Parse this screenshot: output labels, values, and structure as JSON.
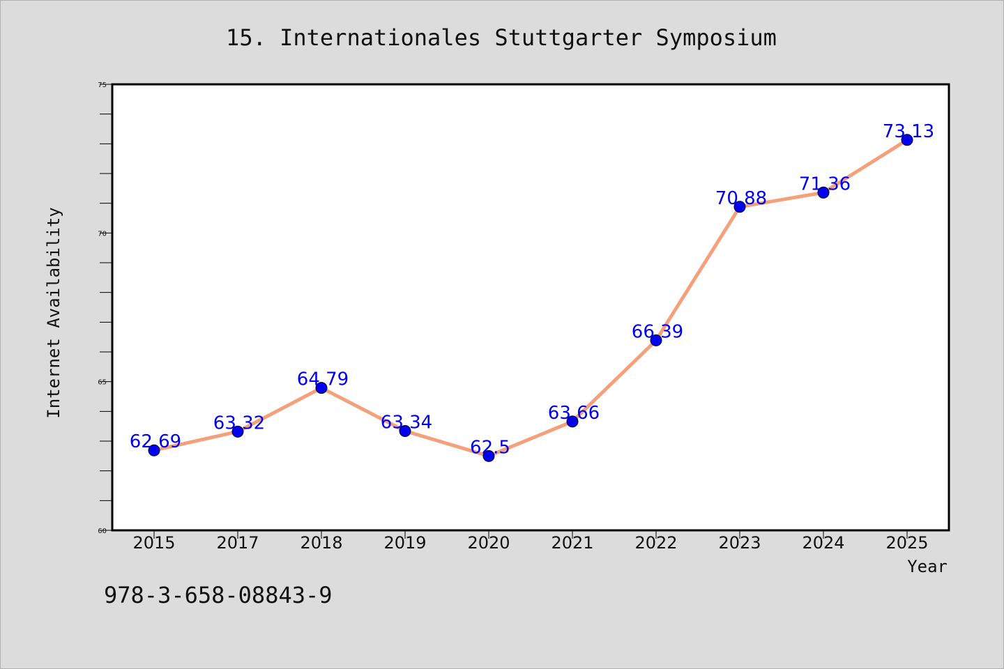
{
  "chart_data": {
    "type": "line",
    "title": "15. Internationales Stuttgarter Symposium",
    "xlabel": "Year",
    "ylabel": "Internet Availability",
    "categories": [
      "2015",
      "2017",
      "2018",
      "2019",
      "2020",
      "2021",
      "2022",
      "2023",
      "2024",
      "2025"
    ],
    "series": [
      {
        "values": [
          62.69,
          63.32,
          64.79,
          63.34,
          62.5,
          63.66,
          66.39,
          70.88,
          71.36,
          73.13
        ],
        "labels": [
          "62.69",
          "63.32",
          "64.79",
          "63.34",
          "62.5",
          "63.66",
          "66.39",
          "70.88",
          "71.36",
          "73.13"
        ],
        "line_color": "#f4a07a",
        "marker_color": "#0000ee",
        "label_color": "#0000ee"
      }
    ],
    "ylim": [
      60,
      75
    ],
    "yticks_major": [
      60,
      65,
      70,
      75
    ],
    "ytick_minor_step": 1,
    "grid": false,
    "legend": "none"
  },
  "footer": {
    "isbn": "978-3-658-08843-9"
  },
  "colors": {
    "background": "#dcdcdc",
    "plot_background": "#ffffff",
    "line": "#f4a07a",
    "marker": "#0000ee",
    "data_label": "#0000ee"
  }
}
